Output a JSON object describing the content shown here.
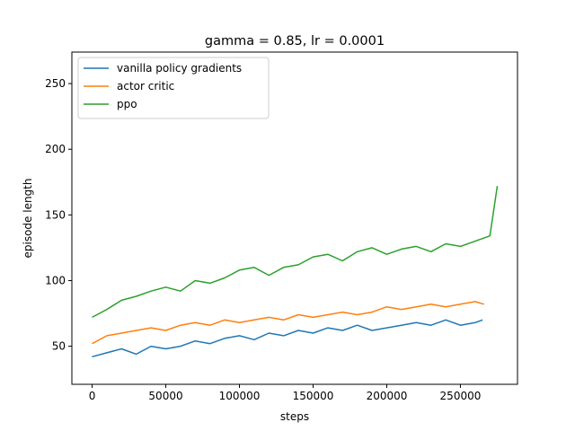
{
  "chart_data": {
    "type": "line",
    "title": "gamma = 0.85, lr = 0.0001",
    "xlabel": "steps",
    "ylabel": "episode length",
    "xlim": [
      -13750,
      288750
    ],
    "ylim": [
      21,
      274
    ],
    "xticks": [
      0,
      50000,
      100000,
      150000,
      200000,
      250000
    ],
    "xtick_labels": [
      "0",
      "50000",
      "100000",
      "150000",
      "200000",
      "250000"
    ],
    "yticks": [
      50,
      100,
      150,
      200,
      250
    ],
    "ytick_labels": [
      "50",
      "100",
      "150",
      "200",
      "250"
    ],
    "grid": false,
    "legend_position": "upper-left",
    "series": [
      {
        "name": "vanilla policy gradients",
        "color": "#1f77b4",
        "x": [
          0,
          10000,
          20000,
          30000,
          40000,
          50000,
          60000,
          70000,
          80000,
          90000,
          100000,
          110000,
          120000,
          130000,
          140000,
          150000,
          160000,
          170000,
          180000,
          190000,
          200000,
          210000,
          220000,
          230000,
          240000,
          250000,
          260000,
          265000
        ],
        "y": [
          42,
          45,
          48,
          44,
          50,
          48,
          50,
          54,
          52,
          56,
          58,
          55,
          60,
          58,
          62,
          60,
          64,
          62,
          66,
          62,
          64,
          66,
          68,
          66,
          70,
          66,
          68,
          70
        ]
      },
      {
        "name": "actor critic",
        "color": "#ff7f0e",
        "x": [
          0,
          10000,
          20000,
          30000,
          40000,
          50000,
          60000,
          70000,
          80000,
          90000,
          100000,
          110000,
          120000,
          130000,
          140000,
          150000,
          160000,
          170000,
          180000,
          190000,
          200000,
          210000,
          220000,
          230000,
          240000,
          250000,
          260000,
          266000
        ],
        "y": [
          52,
          58,
          60,
          62,
          64,
          62,
          66,
          68,
          66,
          70,
          68,
          70,
          72,
          70,
          74,
          72,
          74,
          76,
          74,
          76,
          80,
          78,
          80,
          82,
          80,
          82,
          84,
          82
        ]
      },
      {
        "name": "ppo",
        "color": "#2ca02c",
        "x": [
          0,
          10000,
          20000,
          30000,
          40000,
          50000,
          60000,
          70000,
          80000,
          90000,
          100000,
          110000,
          120000,
          130000,
          140000,
          150000,
          160000,
          170000,
          180000,
          190000,
          200000,
          210000,
          220000,
          230000,
          240000,
          250000,
          260000,
          270000,
          275000
        ],
        "y": [
          72,
          78,
          85,
          88,
          92,
          95,
          92,
          100,
          98,
          102,
          108,
          110,
          104,
          110,
          112,
          118,
          120,
          115,
          122,
          125,
          120,
          124,
          126,
          122,
          128,
          126,
          130,
          134,
          172
        ]
      }
    ]
  }
}
